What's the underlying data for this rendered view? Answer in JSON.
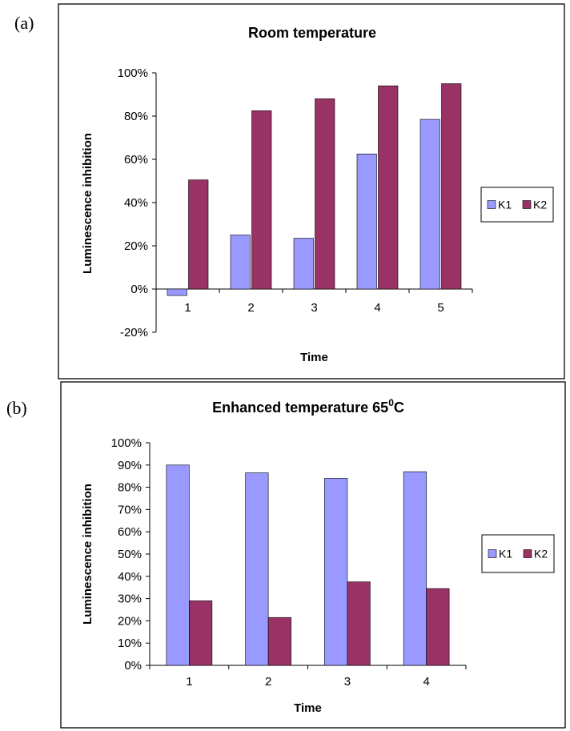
{
  "panels": [
    {
      "label": "(a)"
    },
    {
      "label": "(b)"
    }
  ],
  "colors": {
    "K1": "#9999FF",
    "K2": "#993366",
    "frame": "#000000"
  },
  "chart_data": [
    {
      "type": "bar",
      "title": "Room temperature",
      "title_sup": "",
      "title_suffix": "",
      "xlabel": "Time",
      "ylabel": "Luminescence inhibition",
      "categories": [
        "1",
        "2",
        "3",
        "4",
        "5"
      ],
      "ylim": [
        -20,
        100
      ],
      "yticks": [
        -20,
        0,
        20,
        40,
        60,
        80,
        100
      ],
      "ytick_labels": [
        "-20%",
        "0%",
        "20%",
        "40%",
        "60%",
        "80%",
        "100%"
      ],
      "series": [
        {
          "name": "K1",
          "values": [
            -3,
            25,
            23.5,
            62.5,
            78.5
          ]
        },
        {
          "name": "K2",
          "values": [
            50.5,
            82.5,
            88,
            94,
            95
          ]
        }
      ],
      "legend": "right"
    },
    {
      "type": "bar",
      "title": "Enhanced temperature 65",
      "title_sup": "0",
      "title_suffix": "C",
      "xlabel": "Time",
      "ylabel": "Luminescence inhibition",
      "categories": [
        "1",
        "2",
        "3",
        "4"
      ],
      "ylim": [
        0,
        100
      ],
      "yticks": [
        0,
        10,
        20,
        30,
        40,
        50,
        60,
        70,
        80,
        90,
        100
      ],
      "ytick_labels": [
        "0%",
        "10%",
        "20%",
        "30%",
        "40%",
        "50%",
        "60%",
        "70%",
        "80%",
        "90%",
        "100%"
      ],
      "series": [
        {
          "name": "K1",
          "values": [
            90,
            86.5,
            84,
            87
          ]
        },
        {
          "name": "K2",
          "values": [
            29,
            21.5,
            37.5,
            34.5
          ]
        }
      ],
      "legend": "right"
    }
  ]
}
